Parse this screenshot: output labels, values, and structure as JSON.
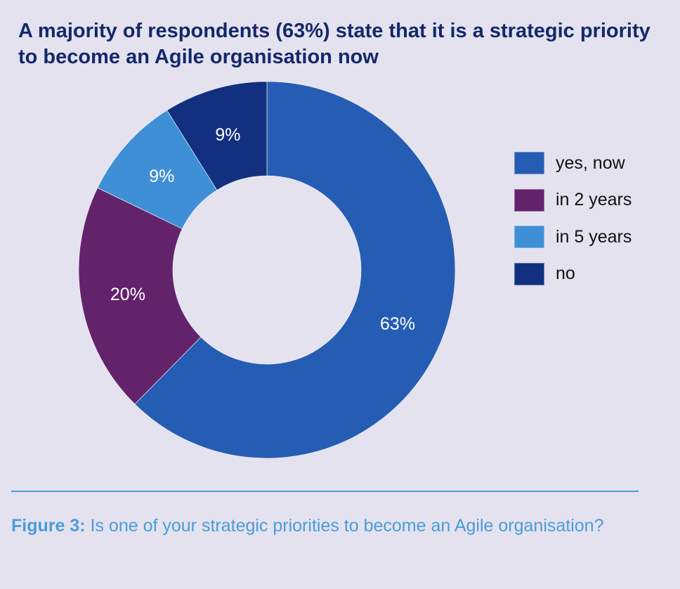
{
  "chart_data": {
    "type": "pie",
    "variant": "donut",
    "title": "A majority of respondents (63%) state that it is a strategic priority to become an Agile organisation now",
    "categories": [
      "yes, now",
      "in 2 years",
      "in 5 years",
      "no"
    ],
    "values": [
      63,
      20,
      9,
      9
    ],
    "labels": [
      "63%",
      "20%",
      "9%",
      "9%"
    ],
    "colors": [
      "#265db4",
      "#63236b",
      "#3f8fd6",
      "#12307f"
    ],
    "legend_position": "right",
    "start": "top, clockwise"
  },
  "caption": {
    "prefix": "Figure 3:",
    "text": " Is one of your strategic priorities to become an Agile organisation?"
  }
}
